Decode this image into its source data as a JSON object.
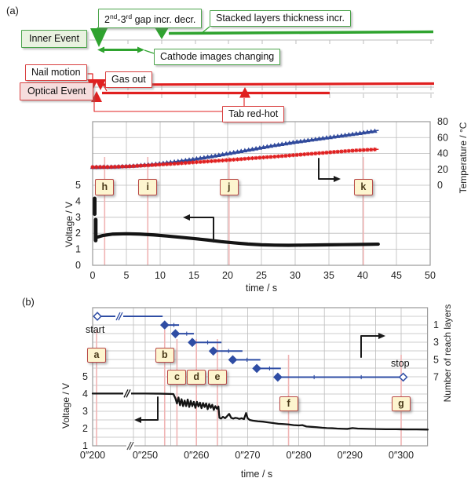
{
  "panels": {
    "a": "(a)",
    "b": "(b)"
  },
  "timeline": {
    "green_color": "#2fa32f",
    "red_color": "#e02020",
    "inner_event_label": "Inner Event",
    "optical_event_label": "Optical Event",
    "nail_motion_label": "Nail motion",
    "gas_out_label": "Gas out",
    "tab_red_hot_label": "Tab red-hot",
    "cathode_label": "Cathode images changing",
    "stacked_label": "Stacked layers thickness incr.",
    "gap_label_parts": {
      "t1": "2",
      "sup1": "nd",
      "t2": "-3",
      "sup2": "rd",
      "t3": " gap incr. decr."
    }
  },
  "chart_data": [
    {
      "id": "panel-a",
      "type": "line",
      "xlabel": "time / s",
      "x_ticks": [
        0,
        5,
        10,
        15,
        20,
        25,
        30,
        35,
        40,
        45,
        50
      ],
      "xlim": [
        0,
        50
      ],
      "grid": true,
      "left_axis": {
        "label": "Voltage / V",
        "ticks": [
          0,
          1,
          2,
          3,
          4,
          5
        ],
        "lim": [
          0,
          5
        ]
      },
      "right_axis": {
        "label": "Temperature / °C",
        "ticks": [
          0,
          20,
          40,
          60,
          80
        ],
        "lim": [
          0,
          80
        ]
      },
      "event_markers": [
        {
          "label": "h",
          "t": 1.78
        },
        {
          "label": "i",
          "t": 8.17
        },
        {
          "label": "j",
          "t": 20.2
        },
        {
          "label": "k",
          "t": 40.1
        }
      ],
      "series": [
        {
          "name": "temperature-blue-triangle",
          "axis": "right",
          "color": "#304a9c",
          "marker": "triangle",
          "points": [
            [
              0,
              23
            ],
            [
              3,
              23.3
            ],
            [
              6,
              24.5
            ],
            [
              9,
              26.5
            ],
            [
              12,
              29.5
            ],
            [
              15,
              33
            ],
            [
              18,
              37
            ],
            [
              21,
              41.5
            ],
            [
              24,
              46
            ],
            [
              27,
              50.5
            ],
            [
              30,
              54.5
            ],
            [
              33,
              58
            ],
            [
              36,
              61.5
            ],
            [
              39,
              65
            ],
            [
              42.3,
              69
            ]
          ]
        },
        {
          "name": "temperature-red-star",
          "axis": "right",
          "color": "#e01f1f",
          "marker": "star",
          "points": [
            [
              0,
              22.8
            ],
            [
              3,
              23
            ],
            [
              6,
              24
            ],
            [
              9,
              25.5
            ],
            [
              12,
              27
            ],
            [
              15,
              28.8
            ],
            [
              18,
              30.5
            ],
            [
              21,
              32.3
            ],
            [
              24,
              34.2
            ],
            [
              27,
              36
            ],
            [
              30,
              38
            ],
            [
              33,
              40
            ],
            [
              36,
              42
            ],
            [
              39,
              43.8
            ],
            [
              42.3,
              45.2
            ]
          ]
        },
        {
          "name": "voltage-black",
          "axis": "left",
          "color": "#141414",
          "marker": "none",
          "points": [
            [
              0.6,
              1.75
            ],
            [
              1.5,
              1.86
            ],
            [
              3,
              1.95
            ],
            [
              5,
              1.97
            ],
            [
              7,
              1.95
            ],
            [
              9,
              1.9
            ],
            [
              11,
              1.83
            ],
            [
              13,
              1.75
            ],
            [
              15,
              1.67
            ],
            [
              17,
              1.58
            ],
            [
              19,
              1.48
            ],
            [
              21,
              1.4
            ],
            [
              23,
              1.33
            ],
            [
              25,
              1.28
            ],
            [
              27,
              1.26
            ],
            [
              29,
              1.25
            ],
            [
              31,
              1.26
            ],
            [
              33,
              1.27
            ],
            [
              35,
              1.28
            ],
            [
              37,
              1.29
            ],
            [
              39,
              1.3
            ],
            [
              41,
              1.31
            ],
            [
              42.3,
              1.32
            ]
          ],
          "initial_drops": [
            [
              [
                0.3,
                4.17
              ],
              [
                0.3,
                3.2
              ]
            ],
            [
              [
                0.45,
                2.85
              ],
              [
                0.45,
                1.55
              ]
            ]
          ]
        }
      ]
    },
    {
      "id": "panel-b",
      "type": "line-step",
      "xlabel": "time / s",
      "has_axis_break": true,
      "x_ticks": [
        {
          "t": 200,
          "label": "0″200"
        },
        {
          "t": 250,
          "label": "0″250"
        },
        {
          "t": 260,
          "label": "0″260"
        },
        {
          "t": 270,
          "label": "0″270"
        },
        {
          "t": 280,
          "label": "0″280"
        },
        {
          "t": 290,
          "label": "0″290"
        },
        {
          "t": 300,
          "label": "0″300"
        }
      ],
      "left_axis": {
        "label": "Voltage / V",
        "ticks": [
          1,
          2,
          3,
          4,
          5
        ],
        "lim": [
          1,
          5
        ]
      },
      "right_axis": {
        "label": "Number of reach layers",
        "ticks": [
          1,
          3,
          5,
          7
        ],
        "lim": [
          0,
          8
        ]
      },
      "start_label": "start",
      "stop_label": "stop",
      "event_markers": [
        {
          "label": "a",
          "t": 203.7
        },
        {
          "label": "b",
          "t": 253.8
        },
        {
          "label": "c",
          "t": 256.2
        },
        {
          "label": "d",
          "t": 260
        },
        {
          "label": "e",
          "t": 264.1
        },
        {
          "label": "f",
          "t": 278
        },
        {
          "label": "g",
          "t": 300
        }
      ],
      "voltage_series": {
        "name": "voltage-black",
        "color": "#141414",
        "points": [
          [
            200,
            4.03
          ],
          [
            250,
            4.03
          ],
          [
            253,
            4.02
          ],
          [
            255.5,
            4.0
          ],
          [
            255.9,
            3.75
          ],
          [
            256.2,
            3.45
          ],
          [
            256.5,
            3.8
          ],
          [
            256.8,
            3.35
          ],
          [
            257.1,
            3.7
          ],
          [
            257.4,
            3.3
          ],
          [
            257.7,
            3.62
          ],
          [
            258.0,
            3.3
          ],
          [
            258.3,
            3.68
          ],
          [
            258.6,
            3.25
          ],
          [
            258.9,
            3.6
          ],
          [
            259.2,
            3.3
          ],
          [
            259.5,
            3.55
          ],
          [
            259.8,
            3.2
          ],
          [
            260.1,
            3.55
          ],
          [
            260.4,
            3.28
          ],
          [
            260.7,
            3.5
          ],
          [
            261.0,
            3.18
          ],
          [
            261.3,
            3.48
          ],
          [
            261.6,
            3.25
          ],
          [
            261.9,
            3.45
          ],
          [
            262.2,
            3.12
          ],
          [
            262.5,
            3.42
          ],
          [
            262.8,
            3.2
          ],
          [
            263.1,
            3.38
          ],
          [
            263.4,
            3.08
          ],
          [
            263.7,
            3.3
          ],
          [
            264.0,
            3.15
          ],
          [
            264.3,
            3.28
          ],
          [
            264.5,
            2.62
          ],
          [
            264.8,
            2.58
          ],
          [
            265.2,
            2.68
          ],
          [
            265.6,
            2.6
          ],
          [
            266.0,
            2.72
          ],
          [
            266.4,
            2.85
          ],
          [
            266.8,
            2.62
          ],
          [
            267.2,
            2.58
          ],
          [
            267.6,
            2.62
          ],
          [
            268.0,
            2.6
          ],
          [
            268.4,
            2.56
          ],
          [
            268.8,
            2.6
          ],
          [
            269.3,
            2.55
          ],
          [
            269.7,
            2.9
          ],
          [
            270.0,
            2.6
          ],
          [
            270.4,
            2.5
          ],
          [
            271.0,
            2.46
          ],
          [
            272,
            2.42
          ],
          [
            273,
            2.4
          ],
          [
            274,
            2.36
          ],
          [
            275,
            2.32
          ],
          [
            276,
            2.28
          ],
          [
            277,
            2.26
          ],
          [
            278,
            2.24
          ],
          [
            279,
            2.2
          ],
          [
            280,
            2.18
          ],
          [
            280.7,
            2.2
          ],
          [
            281.5,
            2.12
          ],
          [
            282.5,
            2.1
          ],
          [
            283.5,
            2.08
          ],
          [
            284.5,
            2.05
          ],
          [
            285.5,
            2.03
          ],
          [
            286.5,
            2.02
          ],
          [
            287.5,
            2.0
          ],
          [
            288.5,
            1.99
          ],
          [
            289.5,
            1.98
          ],
          [
            290.5,
            2.03
          ],
          [
            291.5,
            2.0
          ],
          [
            293,
            1.99
          ],
          [
            295,
            1.97
          ],
          [
            297,
            1.96
          ],
          [
            299,
            1.96
          ],
          [
            301,
            1.95
          ],
          [
            303,
            1.95
          ],
          [
            305.2,
            1.94
          ]
        ]
      },
      "layer_series": {
        "name": "number-of-reach-layers",
        "color": "#2f4da4",
        "steps": [
          {
            "level": 0,
            "t_start": 204.5,
            "t_end": 253.4,
            "start_marker": "open",
            "break_t": 222
          },
          {
            "level": 1,
            "t_start": 253.8,
            "t_end": 256.6,
            "tick_ts": [
              255.6
            ]
          },
          {
            "level": 2,
            "t_start": 255.9,
            "t_end": 259.5,
            "tick_ts": [
              258.1
            ]
          },
          {
            "level": 3,
            "t_start": 259.2,
            "t_end": 264.9,
            "tick_ts": [
              262.2
            ]
          },
          {
            "level": 4,
            "t_start": 263.3,
            "t_end": 269.0,
            "tick_ts": [
              266.3
            ]
          },
          {
            "level": 5,
            "t_start": 267.1,
            "t_end": 272.5,
            "tick_ts": [
              269.9
            ]
          },
          {
            "level": 6,
            "t_start": 271.8,
            "t_end": 276.5,
            "tick_ts": [
              274.3
            ]
          },
          {
            "level": 7,
            "t_start": 275.9,
            "t_end": 300.4,
            "tick_ts": [
              283,
              292.2
            ],
            "end_marker": "open"
          }
        ]
      }
    }
  ]
}
